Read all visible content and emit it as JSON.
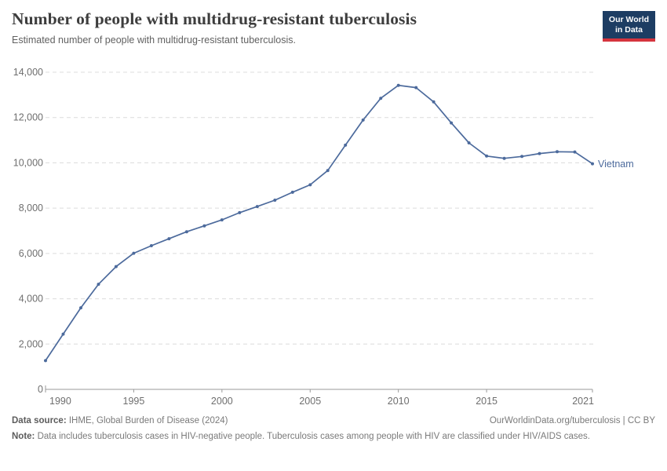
{
  "header": {
    "title": "Number of people with multidrug-resistant tuberculosis",
    "subtitle": "Estimated number of people with multidrug-resistant tuberculosis.",
    "logo": {
      "line1": "Our World",
      "line2": "in Data"
    }
  },
  "chart_data": {
    "type": "line",
    "title": "Number of people with multidrug-resistant tuberculosis",
    "xlabel": "",
    "ylabel": "",
    "xlim": [
      1990,
      2021
    ],
    "ylim": [
      0,
      14000
    ],
    "grid": "horizontal-dashed",
    "legend_position": "end-of-line-label",
    "x_ticks": [
      1990,
      1995,
      2000,
      2005,
      2010,
      2015,
      2021
    ],
    "y_ticks": [
      0,
      2000,
      4000,
      6000,
      8000,
      10000,
      12000,
      14000
    ],
    "x": [
      1990,
      1991,
      1992,
      1993,
      1994,
      1995,
      1996,
      1997,
      1998,
      1999,
      2000,
      2001,
      2002,
      2003,
      2004,
      2005,
      2006,
      2007,
      2008,
      2009,
      2010,
      2011,
      2012,
      2013,
      2014,
      2015,
      2016,
      2017,
      2018,
      2019,
      2020,
      2021
    ],
    "series": [
      {
        "name": "Vietnam",
        "color": "#4c6a9c",
        "values": [
          1270,
          2440,
          3600,
          4640,
          5420,
          6010,
          6340,
          6650,
          6960,
          7220,
          7480,
          7800,
          8070,
          8350,
          8700,
          9030,
          9660,
          10780,
          11890,
          12850,
          13420,
          13320,
          12690,
          11760,
          10880,
          10300,
          10200,
          10280,
          10410,
          10490,
          10480,
          9960
        ]
      }
    ]
  },
  "footer": {
    "source_label": "Data source:",
    "source_text": " IHME, Global Burden of Disease (2024)",
    "attribution": "OurWorldinData.org/tuberculosis | CC BY",
    "note_label": "Note:",
    "note_text": " Data includes tuberculosis cases in HIV-negative people. Tuberculosis cases among people with HIV are classified under HIV/AIDS cases."
  },
  "colors": {
    "line": "#4c6a9c",
    "gridline": "#dcdcdc",
    "axis": "#9a9a9a",
    "tick_label": "#6e6e6e",
    "logo_bg": "#1d3d63",
    "logo_red": "#d5343e"
  }
}
